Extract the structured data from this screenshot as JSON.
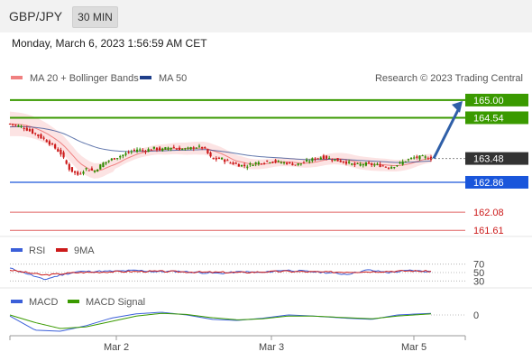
{
  "header": {
    "symbol": "GBP/JPY",
    "timeframe": "30 MIN",
    "datetime": "Monday, March 6, 2023 1:56:59 AM CET"
  },
  "colors": {
    "candle_up": "#2e8b00",
    "candle_down": "#cc1a1a",
    "bollinger": "#f08080",
    "bollinger_fill": "#fbdada",
    "ma50": "#1f3f8a",
    "resistance": "#3a9a00",
    "support": "#1a56db",
    "extra_support": "#e06060",
    "current_price": "#333333",
    "arrow": "#2f5fa8",
    "rsi": "#3b5fd9",
    "rsi_ma": "#cc1a1a",
    "macd": "#3b5fd9",
    "macd_signal": "#3a9a00"
  },
  "chart_data": [
    {
      "type": "candlestick",
      "legend": [
        {
          "name": "MA 20 + Bollinger Bands",
          "color": "#f08080"
        },
        {
          "name": "MA 50",
          "color": "#1f3f8a"
        }
      ],
      "credit": "Research © 2023 Trading Central",
      "ylim": [
        161.45,
        165.35
      ],
      "x_ticks": [
        "Mar 2",
        "Mar 3",
        "Mar 5"
      ],
      "close_path": [
        [
          0,
          164.38
        ],
        [
          3,
          164.3
        ],
        [
          6,
          164.12
        ],
        [
          9,
          163.92
        ],
        [
          12,
          163.62
        ],
        [
          14,
          163.22
        ],
        [
          16,
          163.05
        ],
        [
          18,
          163.22
        ],
        [
          20,
          163.15
        ],
        [
          22,
          163.35
        ],
        [
          25,
          163.5
        ],
        [
          28,
          163.62
        ],
        [
          30,
          163.72
        ],
        [
          32,
          163.68
        ],
        [
          34,
          163.75
        ],
        [
          36,
          163.7
        ],
        [
          38,
          163.78
        ],
        [
          40,
          163.73
        ],
        [
          42,
          163.72
        ],
        [
          44,
          163.78
        ],
        [
          46,
          163.76
        ],
        [
          48,
          163.45
        ],
        [
          50,
          163.48
        ],
        [
          52,
          163.38
        ],
        [
          54,
          163.32
        ],
        [
          56,
          163.28
        ],
        [
          58,
          163.36
        ],
        [
          60,
          163.38
        ],
        [
          62,
          163.42
        ],
        [
          64,
          163.38
        ],
        [
          66,
          163.36
        ],
        [
          68,
          163.32
        ],
        [
          70,
          163.38
        ],
        [
          72,
          163.46
        ],
        [
          74,
          163.52
        ],
        [
          76,
          163.48
        ],
        [
          78,
          163.42
        ],
        [
          80,
          163.38
        ],
        [
          82,
          163.3
        ],
        [
          84,
          163.34
        ],
        [
          86,
          163.32
        ],
        [
          88,
          163.3
        ],
        [
          90,
          163.25
        ],
        [
          92,
          163.32
        ],
        [
          94,
          163.43
        ],
        [
          96,
          163.5
        ],
        [
          98,
          163.52
        ],
        [
          100,
          163.48
        ]
      ],
      "levels": [
        {
          "value": 165.0,
          "label": "165.00",
          "kind": "resistance"
        },
        {
          "value": 164.54,
          "label": "164.54",
          "kind": "resistance"
        },
        {
          "value": 163.48,
          "label": "163.48",
          "kind": "current"
        },
        {
          "value": 162.86,
          "label": "162.86",
          "kind": "support"
        },
        {
          "value": 162.08,
          "label": "162.08",
          "kind": "extra"
        },
        {
          "value": 161.61,
          "label": "161.61",
          "kind": "extra"
        }
      ],
      "target_arrow": {
        "from": 163.48,
        "to": 165.0
      }
    },
    {
      "type": "line",
      "legend": [
        {
          "name": "RSI",
          "color": "#3b5fd9"
        },
        {
          "name": "9MA",
          "color": "#cc1a1a"
        }
      ],
      "ylim": [
        20,
        80
      ],
      "y_ticks": [
        "70",
        "50",
        "30"
      ],
      "rsi": [
        [
          0,
          60
        ],
        [
          4,
          48
        ],
        [
          8,
          33
        ],
        [
          12,
          44
        ],
        [
          16,
          52
        ],
        [
          20,
          53
        ],
        [
          25,
          53
        ],
        [
          30,
          55
        ],
        [
          35,
          52
        ],
        [
          40,
          53
        ],
        [
          45,
          50
        ],
        [
          50,
          48
        ],
        [
          55,
          52
        ],
        [
          60,
          50
        ],
        [
          65,
          56
        ],
        [
          70,
          53
        ],
        [
          75,
          50
        ],
        [
          80,
          46
        ],
        [
          85,
          56
        ],
        [
          90,
          50
        ],
        [
          95,
          55
        ],
        [
          100,
          52
        ]
      ],
      "rsi_ma": [
        [
          0,
          56
        ],
        [
          8,
          44
        ],
        [
          16,
          50
        ],
        [
          25,
          52
        ],
        [
          35,
          53
        ],
        [
          45,
          51
        ],
        [
          55,
          50
        ],
        [
          65,
          53
        ],
        [
          75,
          51
        ],
        [
          85,
          52
        ],
        [
          95,
          54
        ],
        [
          100,
          53
        ]
      ]
    },
    {
      "type": "line",
      "legend": [
        {
          "name": "MACD",
          "color": "#3b5fd9"
        },
        {
          "name": "MACD Signal",
          "color": "#3a9a00"
        }
      ],
      "ylim": [
        -0.35,
        0.25
      ],
      "y_ticks": [
        "0"
      ],
      "macd": [
        [
          0,
          -0.02
        ],
        [
          6,
          -0.28
        ],
        [
          12,
          -0.3
        ],
        [
          18,
          -0.2
        ],
        [
          24,
          -0.06
        ],
        [
          30,
          0.02
        ],
        [
          36,
          0.05
        ],
        [
          42,
          0.0
        ],
        [
          48,
          -0.08
        ],
        [
          54,
          -0.1
        ],
        [
          60,
          -0.06
        ],
        [
          66,
          0.0
        ],
        [
          72,
          -0.02
        ],
        [
          80,
          -0.06
        ],
        [
          86,
          -0.08
        ],
        [
          92,
          0.0
        ],
        [
          100,
          0.03
        ]
      ],
      "signal": [
        [
          0,
          0.0
        ],
        [
          6,
          -0.14
        ],
        [
          12,
          -0.25
        ],
        [
          18,
          -0.22
        ],
        [
          24,
          -0.12
        ],
        [
          30,
          -0.02
        ],
        [
          36,
          0.03
        ],
        [
          42,
          0.01
        ],
        [
          48,
          -0.05
        ],
        [
          54,
          -0.09
        ],
        [
          60,
          -0.07
        ],
        [
          66,
          -0.02
        ],
        [
          72,
          -0.02
        ],
        [
          80,
          -0.05
        ],
        [
          86,
          -0.07
        ],
        [
          92,
          -0.02
        ],
        [
          100,
          0.02
        ]
      ]
    }
  ]
}
